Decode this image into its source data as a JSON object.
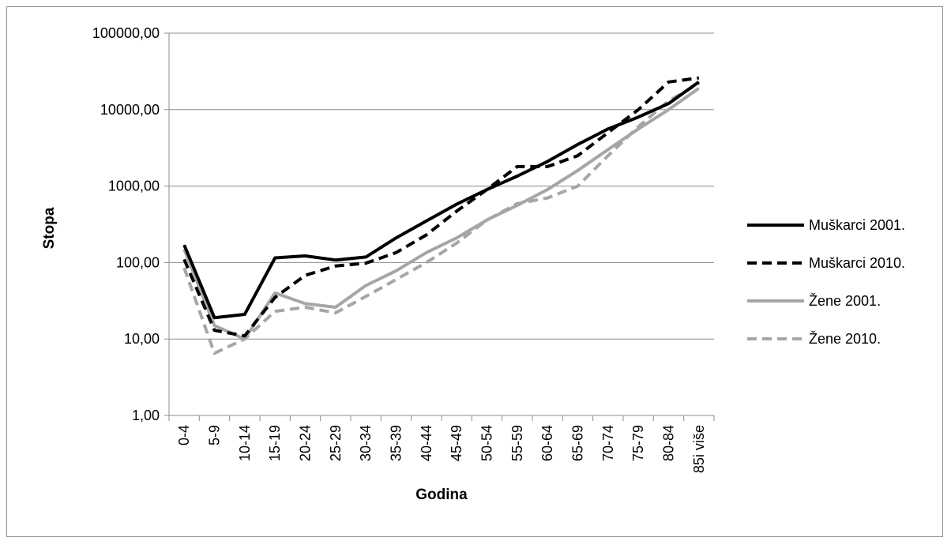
{
  "chart_data": {
    "type": "line",
    "title": "",
    "xlabel": "Godina",
    "ylabel": "Stopa",
    "yscale": "log",
    "ylim": [
      1,
      100000
    ],
    "ytick_values": [
      1,
      10,
      100,
      1000,
      10000,
      100000
    ],
    "ytick_labels": [
      "1,00",
      "10,00",
      "100,00",
      "1000,00",
      "10000,00",
      "100000,00"
    ],
    "grid": true,
    "legend_position": "right",
    "categories": [
      "0-4",
      "5-9",
      "10-14",
      "15-19",
      "20-24",
      "25-29",
      "30-34",
      "35-39",
      "40-44",
      "45-49",
      "50-54",
      "55-59",
      "60-64",
      "65-69",
      "70-74",
      "75-79",
      "80-84",
      "85i više"
    ],
    "series": [
      {
        "name": "Muškarci 2001.",
        "color": "#000000",
        "dash": "solid",
        "values": [
          170,
          19,
          21,
          115,
          122,
          108,
          118,
          210,
          350,
          580,
          900,
          1350,
          2100,
          3500,
          5600,
          8000,
          12000,
          23000
        ]
      },
      {
        "name": "Muškarci 2010.",
        "color": "#000000",
        "dash": "dashed",
        "values": [
          110,
          13,
          11,
          35,
          68,
          90,
          98,
          135,
          230,
          470,
          900,
          1800,
          1800,
          2500,
          5000,
          10000,
          23000,
          26000
        ]
      },
      {
        "name": "Žene 2001.",
        "color": "#a6a6a6",
        "dash": "solid",
        "values": [
          150,
          15,
          10,
          40,
          29,
          26,
          50,
          78,
          135,
          210,
          360,
          560,
          900,
          1600,
          3000,
          5600,
          10000,
          19000
        ]
      },
      {
        "name": "Žene 2010.",
        "color": "#a6a6a6",
        "dash": "dashed",
        "values": [
          85,
          6.5,
          10,
          23,
          26,
          22,
          36,
          60,
          100,
          180,
          360,
          590,
          700,
          1000,
          2500,
          6000,
          13000,
          22000
        ]
      }
    ]
  }
}
